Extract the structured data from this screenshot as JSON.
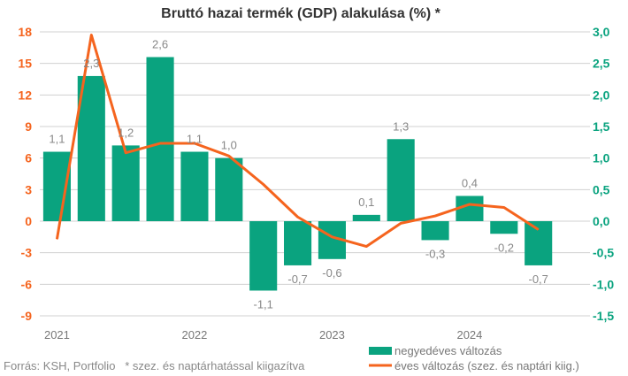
{
  "chart_data": {
    "type": "bar",
    "title": "Bruttó hazai termék (GDP) alakulása (%) *",
    "categories": [
      "2021Q1",
      "2021Q2",
      "2021Q3",
      "2021Q4",
      "2022Q1",
      "2022Q2",
      "2022Q3",
      "2022Q4",
      "2023Q1",
      "2023Q2",
      "2023Q3",
      "2023Q4",
      "2024Q1",
      "2024Q2",
      "2024Q3",
      "2024Q4"
    ],
    "x_tick_labels": [
      "2021",
      "2022",
      "2023",
      "2024"
    ],
    "left_axis": {
      "ylim": [
        -9,
        18
      ],
      "ticks": [
        "18",
        "15",
        "12",
        "9",
        "6",
        "3",
        "0",
        "-3",
        "-6",
        "-9"
      ],
      "color": "#f5641e"
    },
    "right_axis": {
      "ylim": [
        -1.5,
        3.0
      ],
      "ticks": [
        "3,0",
        "2,5",
        "2,0",
        "1,5",
        "1,0",
        "0,5",
        "0,0",
        "-0,5",
        "-1,0",
        "-1,5"
      ],
      "color": "#0aa37f"
    },
    "series": [
      {
        "name": "negyedéves változás",
        "type": "bar",
        "axis": "right",
        "color": "#0aa37f",
        "values": [
          1.1,
          2.3,
          1.2,
          2.6,
          1.1,
          1.0,
          -1.1,
          -0.7,
          -0.6,
          0.1,
          1.3,
          -0.3,
          0.4,
          -0.2,
          -0.7,
          null
        ],
        "labels": [
          "1,1",
          "2,3",
          "1,2",
          "2,6",
          "1,1",
          "1,0",
          "-1,1",
          "-0,7",
          "-0,6",
          "0,1",
          "1,3",
          "-0,3",
          "0,4",
          "-0,2",
          "-0,7",
          ""
        ]
      },
      {
        "name": "éves változás (szez. és naptári kiig.)",
        "type": "line",
        "axis": "left",
        "color": "#f5641e",
        "values": [
          -1.7,
          17.7,
          6.5,
          7.4,
          7.4,
          6.2,
          3.5,
          0.4,
          -1.5,
          -2.4,
          -0.2,
          0.5,
          1.6,
          1.3,
          -0.8,
          null
        ]
      }
    ],
    "grid": true,
    "legend_position": "bottom-right"
  },
  "footer": "Forrás: KSH, Portfolio   * szez. és naptárhatással kiigazítva"
}
